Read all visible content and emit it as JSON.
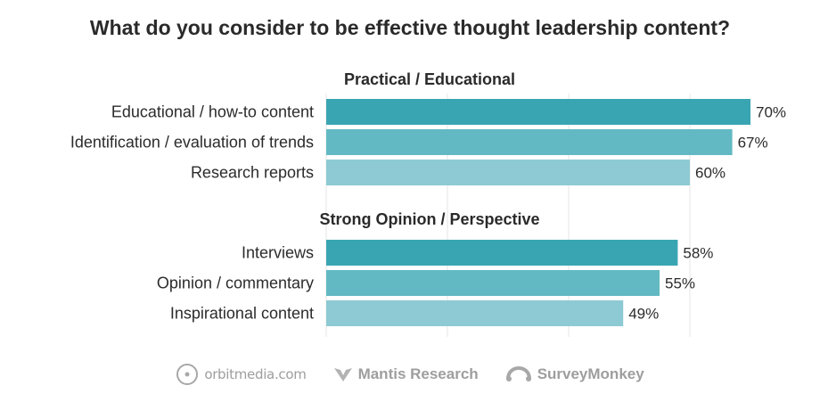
{
  "title": "What do you consider to be effective thought leadership content?",
  "colors": {
    "bar_1": "#3aa5b2",
    "bar_2": "#62b9c3",
    "bar_3": "#8dcad3",
    "grid": "#e6e6e6",
    "text": "#2b2b2b"
  },
  "chart_data": {
    "type": "bar",
    "orientation": "horizontal",
    "title": "What do you consider to be effective thought leadership content?",
    "value_suffix": "%",
    "xlim": [
      0,
      100
    ],
    "grid": true,
    "groups": [
      {
        "name": "Practical / Educational",
        "categories": [
          "Educational / how-to content",
          "Identification / evaluation of trends",
          "Research reports"
        ],
        "values": [
          70,
          67,
          60
        ],
        "labels": [
          "70%",
          "67%",
          "60%"
        ]
      },
      {
        "name": "Strong Opinion / Perspective",
        "categories": [
          "Interviews",
          "Opinion / commentary",
          "Inspirational content"
        ],
        "values": [
          58,
          55,
          49
        ],
        "labels": [
          "58%",
          "55%",
          "49%"
        ]
      }
    ]
  },
  "footer": {
    "logos": [
      {
        "text": "orbitmedia.com",
        "icon": "orbit-circle-icon"
      },
      {
        "text": "Mantis Research",
        "icon": "mantis-icon"
      },
      {
        "text": "SurveyMonkey",
        "icon": "surveymonkey-icon"
      }
    ]
  }
}
